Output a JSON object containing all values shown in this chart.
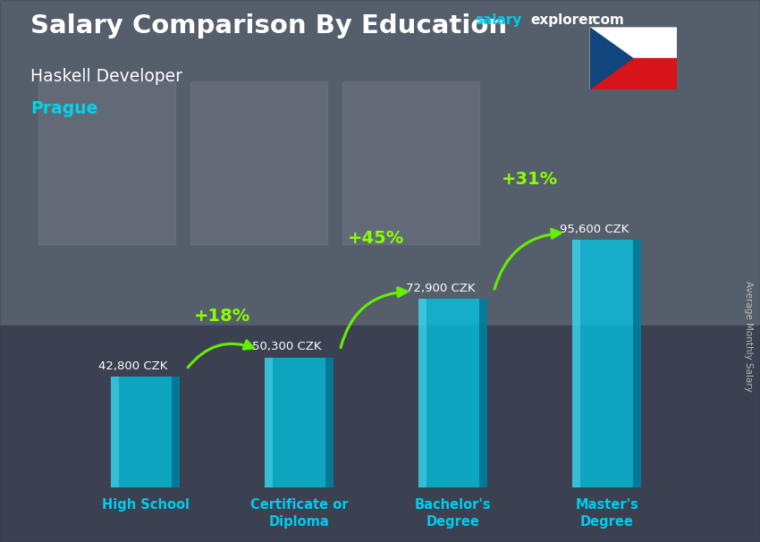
{
  "title": "Salary Comparison By Education",
  "subtitle": "Haskell Developer",
  "city": "Prague",
  "ylabel": "Average Monthly Salary",
  "categories": [
    "High School",
    "Certificate or\nDiploma",
    "Bachelor's\nDegree",
    "Master's\nDegree"
  ],
  "values": [
    42800,
    50300,
    72900,
    95600
  ],
  "value_labels": [
    "42,800 CZK",
    "50,300 CZK",
    "72,900 CZK",
    "95,600 CZK"
  ],
  "pct_changes": [
    "+18%",
    "+45%",
    "+31%"
  ],
  "bar_color": "#00c8e8",
  "bar_edge_color": "#00a8d0",
  "bar_alpha": 0.75,
  "bg_color": "#5a6472",
  "overlay_color": "#3a4050",
  "overlay_alpha": 0.45,
  "title_color": "#ffffff",
  "subtitle_color": "#ffffff",
  "city_color": "#00d4e8",
  "value_label_color": "#ffffff",
  "pct_color": "#88ff00",
  "xlabel_color": "#00ccee",
  "arrow_color": "#66ee00",
  "ylabel_color": "#cccccc",
  "website_color1": "#00ccee",
  "website_color2": "#ffffff",
  "ylim": [
    0,
    115000
  ],
  "bar_width": 0.45,
  "fig_width": 8.5,
  "fig_height": 6.06,
  "dpi": 100
}
